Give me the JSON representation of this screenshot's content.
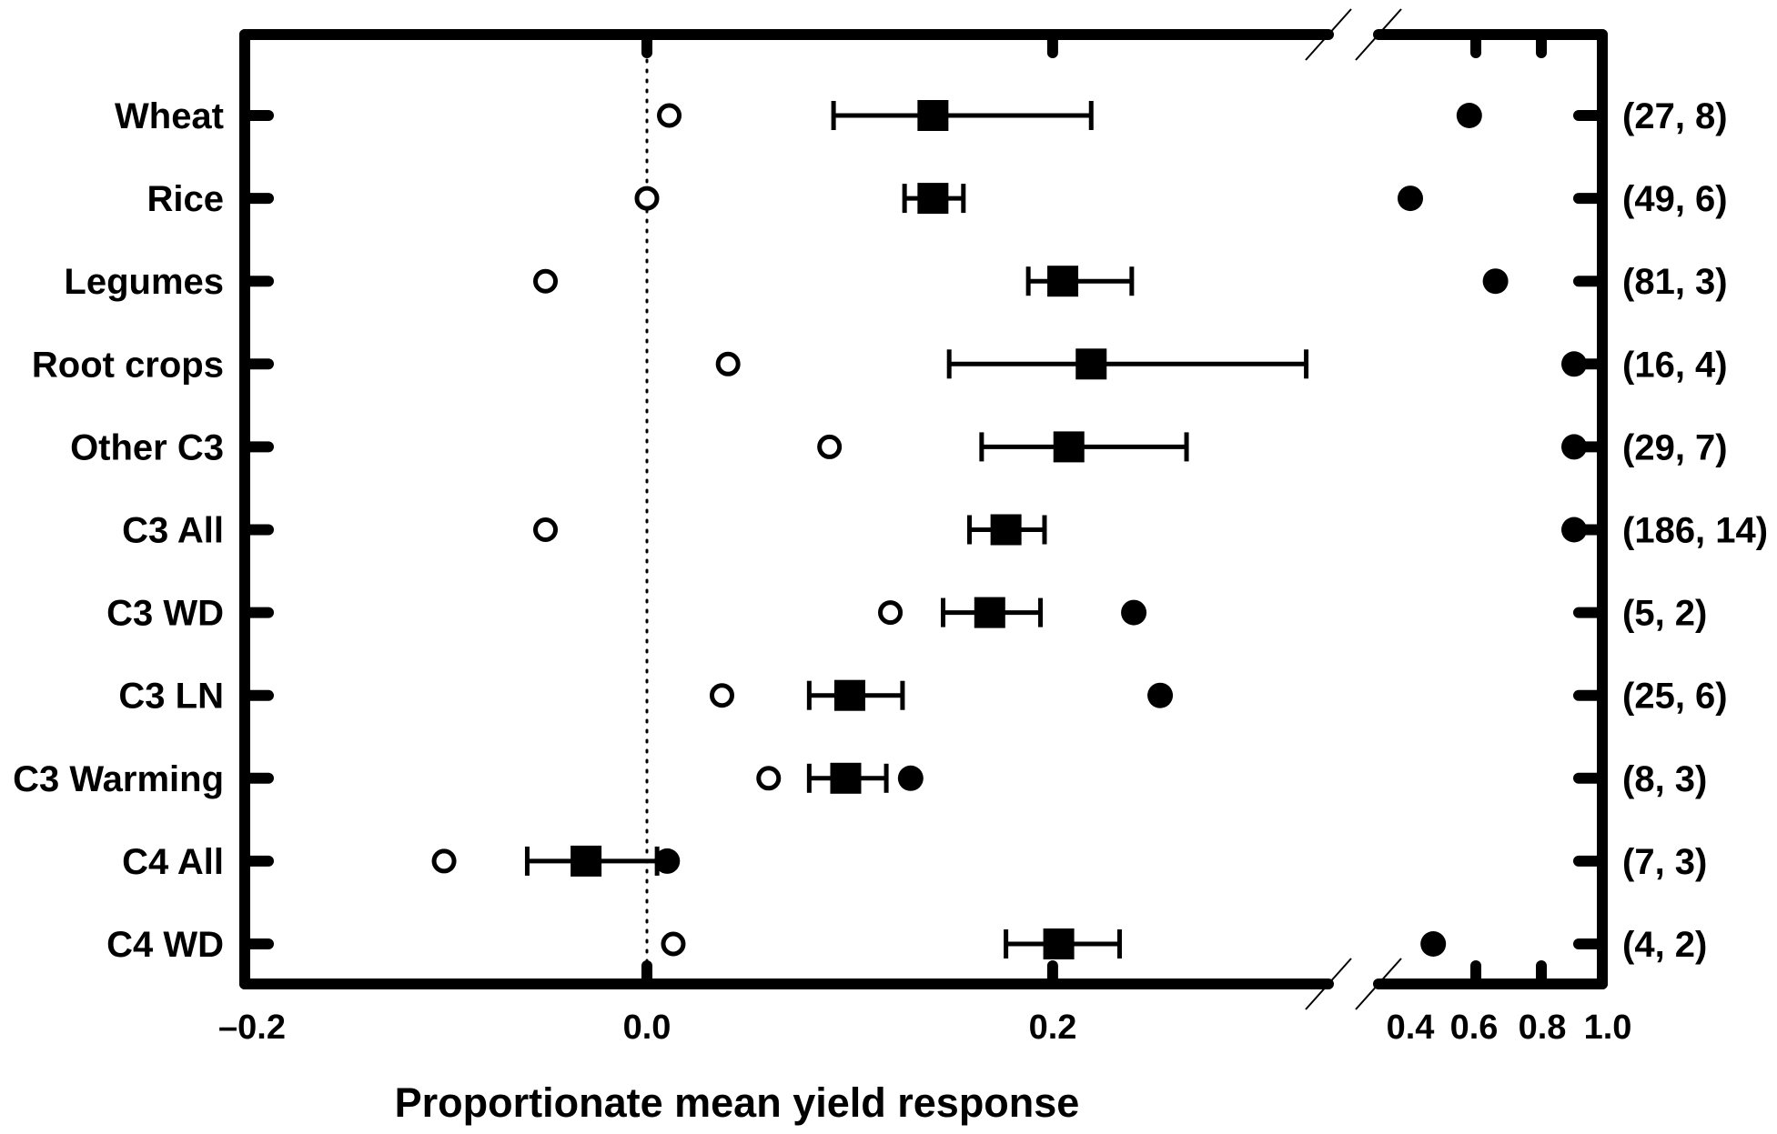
{
  "chart_data": {
    "type": "scatter",
    "xlabel": "Proportionate mean yield response",
    "x_ticks_left": [
      "–0.2",
      "0.0",
      "0.2"
    ],
    "x_ticks_right": [
      "0.4",
      "0.6",
      "0.8",
      "1.0"
    ],
    "xlim_left": [
      -0.2,
      0.33
    ],
    "xlim_right": [
      0.4,
      1.0
    ],
    "axis_break": true,
    "reference_line_x": 0.0,
    "grid": false,
    "legend": "none",
    "categories": [
      "Wheat",
      "Rice",
      "Legumes",
      "Root crops",
      "Other C3",
      "C3 All",
      "C3 WD",
      "C3 LN",
      "C3 Warming",
      "C4 All",
      "C4 WD"
    ],
    "n_labels": [
      "(27, 8)",
      "(49, 6)",
      "(81, 3)",
      "(16, 4)",
      "(29, 7)",
      "(186, 14)",
      "(5, 2)",
      "(25, 6)",
      "(8, 3)",
      "(7, 3)",
      "(4, 2)"
    ],
    "series": [
      {
        "marker": "filled-square",
        "values": [
          0.141,
          0.141,
          0.205,
          0.219,
          0.208,
          0.177,
          0.169,
          0.1,
          0.098,
          -0.03,
          0.203
        ],
        "error_low": [
          0.092,
          0.127,
          0.188,
          0.149,
          0.165,
          0.159,
          0.146,
          0.08,
          0.08,
          -0.059,
          0.177
        ],
        "error_high": [
          0.219,
          0.156,
          0.239,
          0.325,
          0.266,
          0.196,
          0.194,
          0.126,
          0.118,
          0.005,
          0.233
        ]
      },
      {
        "marker": "open-circle",
        "values": [
          0.011,
          0.0,
          -0.05,
          0.04,
          0.09,
          -0.05,
          0.12,
          0.037,
          0.06,
          -0.1,
          0.013
        ]
      },
      {
        "marker": "filled-circle",
        "values": [
          0.58,
          0.4,
          0.66,
          0.9,
          0.9,
          0.9,
          0.24,
          0.253,
          0.13,
          0.01,
          0.47
        ]
      }
    ],
    "colors": {
      "ink": "#000000",
      "background": "#ffffff"
    }
  }
}
